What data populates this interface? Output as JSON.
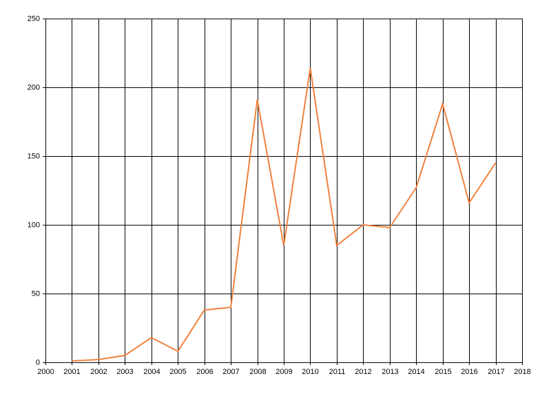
{
  "chart_data": {
    "type": "line",
    "x": [
      2001,
      2002,
      2003,
      2004,
      2005,
      2006,
      2007,
      2008,
      2009,
      2010,
      2011,
      2012,
      2013,
      2014,
      2015,
      2016,
      2017
    ],
    "series": [
      {
        "color": "#f0803c",
        "values": [
          1,
          2,
          5,
          18,
          8,
          38,
          40,
          191,
          85,
          214,
          85,
          100,
          98,
          127,
          188,
          116,
          145
        ]
      }
    ],
    "xlim": [
      2000,
      2018
    ],
    "xticks": [
      2000,
      2001,
      2002,
      2003,
      2004,
      2005,
      2006,
      2007,
      2008,
      2009,
      2010,
      2011,
      2012,
      2013,
      2014,
      2015,
      2016,
      2017,
      2018
    ],
    "ylim": [
      0,
      250
    ],
    "yticks": [
      0,
      50,
      100,
      150,
      200,
      250
    ],
    "grid": true
  }
}
